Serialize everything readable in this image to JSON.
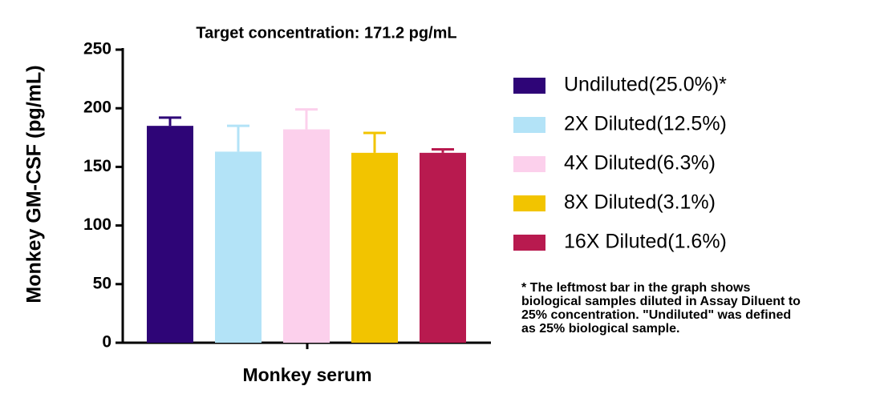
{
  "chart_data": {
    "type": "bar",
    "title": "Target concentration: 171.2 pg/mL",
    "y_label": "Monkey GM-CSF (pg/mL)",
    "x_label": "Monkey serum",
    "ylim": [
      0,
      250
    ],
    "yticks": [
      0,
      50,
      100,
      150,
      200,
      250
    ],
    "series": [
      {
        "name": "Undiluted(25.0%)*",
        "color": "#2e0577",
        "values": [
          185
        ],
        "errors": [
          7
        ]
      },
      {
        "name": "2X Diluted(12.5%)",
        "color": "#b3e3f7",
        "values": [
          163
        ],
        "errors": [
          22
        ]
      },
      {
        "name": "4X Diluted(6.3%)",
        "color": "#fcd0ec",
        "values": [
          182
        ],
        "errors": [
          17
        ]
      },
      {
        "name": "8X Diluted(3.1%)",
        "color": "#f2c400",
        "values": [
          162
        ],
        "errors": [
          17
        ]
      },
      {
        "name": "16X Diluted(1.6%)",
        "color": "#b81a4f",
        "values": [
          162
        ],
        "errors": [
          3
        ]
      }
    ],
    "note": [
      "* The leftmost bar in the graph shows",
      "biological samples diluted in Assay Diluent to",
      "25% concentration. \"Undiluted\" was defined",
      "as 25% biological sample."
    ]
  }
}
